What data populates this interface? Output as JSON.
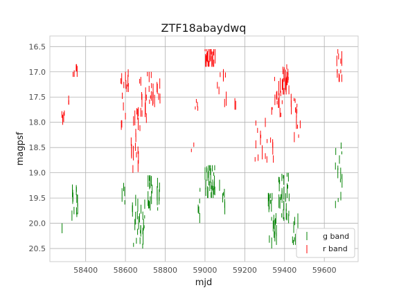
{
  "chart_data": {
    "type": "scatter",
    "title": "ZTF18abaydwq",
    "xlabel": "mjd",
    "ylabel": "magpsf",
    "xlim": [
      58220,
      59770
    ],
    "ylim": [
      20.76,
      16.29
    ],
    "y_inverted": true,
    "grid": true,
    "legend_position": "lower-right",
    "xticks": [
      58400,
      58600,
      58800,
      59000,
      59200,
      59400,
      59600
    ],
    "yticks": [
      16.5,
      17.0,
      17.5,
      18.0,
      18.5,
      19.0,
      19.5,
      20.0,
      20.5
    ],
    "series": [
      {
        "name": "g band",
        "color": "#008000",
        "clusters": [
          {
            "x0": 58280,
            "x1": 58282,
            "ymin": 20.0,
            "ymax": 20.3,
            "n": 1
          },
          {
            "x0": 58325,
            "x1": 58360,
            "ymin": 19.2,
            "ymax": 19.95,
            "n": 12
          },
          {
            "x0": 58578,
            "x1": 58600,
            "ymin": 19.2,
            "ymax": 19.75,
            "n": 4
          },
          {
            "x0": 58635,
            "x1": 58700,
            "ymin": 19.4,
            "ymax": 20.5,
            "n": 26
          },
          {
            "x0": 58710,
            "x1": 58740,
            "ymin": 19.05,
            "ymax": 19.9,
            "n": 12
          },
          {
            "x0": 58755,
            "x1": 58775,
            "ymin": 19.1,
            "ymax": 19.75,
            "n": 8
          },
          {
            "x0": 58958,
            "x1": 58980,
            "ymin": 19.3,
            "ymax": 20.25,
            "n": 5
          },
          {
            "x0": 58998,
            "x1": 59050,
            "ymin": 18.85,
            "ymax": 19.5,
            "n": 28
          },
          {
            "x0": 59065,
            "x1": 59100,
            "ymin": 19.1,
            "ymax": 19.85,
            "n": 6
          },
          {
            "x0": 59318,
            "x1": 59360,
            "ymin": 19.4,
            "ymax": 20.55,
            "n": 20
          },
          {
            "x0": 59370,
            "x1": 59425,
            "ymin": 19.0,
            "ymax": 20.0,
            "n": 28
          },
          {
            "x0": 59440,
            "x1": 59470,
            "ymin": 19.8,
            "ymax": 20.5,
            "n": 8
          },
          {
            "x0": 59655,
            "x1": 59690,
            "ymin": 18.4,
            "ymax": 19.7,
            "n": 14
          }
        ]
      },
      {
        "name": "r band",
        "color": "#ff0000",
        "clusters": [
          {
            "x0": 58280,
            "x1": 58295,
            "ymin": 17.75,
            "ymax": 18.05,
            "n": 5
          },
          {
            "x0": 58310,
            "x1": 58318,
            "ymin": 17.4,
            "ymax": 17.65,
            "n": 2
          },
          {
            "x0": 58330,
            "x1": 58360,
            "ymin": 16.85,
            "ymax": 17.1,
            "n": 6
          },
          {
            "x0": 58572,
            "x1": 58600,
            "ymin": 17.0,
            "ymax": 18.15,
            "n": 8
          },
          {
            "x0": 58600,
            "x1": 58615,
            "ymin": 16.95,
            "ymax": 17.4,
            "n": 6
          },
          {
            "x0": 58625,
            "x1": 58668,
            "ymin": 17.7,
            "ymax": 19.0,
            "n": 18
          },
          {
            "x0": 58668,
            "x1": 58710,
            "ymin": 17.1,
            "ymax": 18.2,
            "n": 12
          },
          {
            "x0": 58710,
            "x1": 58750,
            "ymin": 17.0,
            "ymax": 17.7,
            "n": 12
          },
          {
            "x0": 58755,
            "x1": 58775,
            "ymin": 17.1,
            "ymax": 17.9,
            "n": 5
          },
          {
            "x0": 58930,
            "x1": 58945,
            "ymin": 18.4,
            "ymax": 18.7,
            "n": 2
          },
          {
            "x0": 58950,
            "x1": 58970,
            "ymin": 17.1,
            "ymax": 17.8,
            "n": 4
          },
          {
            "x0": 59000,
            "x1": 59060,
            "ymin": 16.55,
            "ymax": 16.9,
            "n": 24
          },
          {
            "x0": 59060,
            "x1": 59110,
            "ymin": 16.9,
            "ymax": 17.7,
            "n": 8
          },
          {
            "x0": 59150,
            "x1": 59160,
            "ymin": 17.5,
            "ymax": 17.75,
            "n": 2
          },
          {
            "x0": 59250,
            "x1": 59300,
            "ymin": 17.8,
            "ymax": 19.0,
            "n": 8
          },
          {
            "x0": 59300,
            "x1": 59345,
            "ymin": 17.7,
            "ymax": 18.8,
            "n": 10
          },
          {
            "x0": 59345,
            "x1": 59390,
            "ymin": 17.1,
            "ymax": 17.9,
            "n": 14
          },
          {
            "x0": 59390,
            "x1": 59425,
            "ymin": 16.85,
            "ymax": 17.45,
            "n": 20
          },
          {
            "x0": 59430,
            "x1": 59465,
            "ymin": 17.3,
            "ymax": 18.4,
            "n": 10
          },
          {
            "x0": 59465,
            "x1": 59480,
            "ymin": 17.8,
            "ymax": 18.35,
            "n": 3
          },
          {
            "x0": 59655,
            "x1": 59690,
            "ymin": 16.55,
            "ymax": 17.2,
            "n": 12
          }
        ]
      }
    ]
  }
}
